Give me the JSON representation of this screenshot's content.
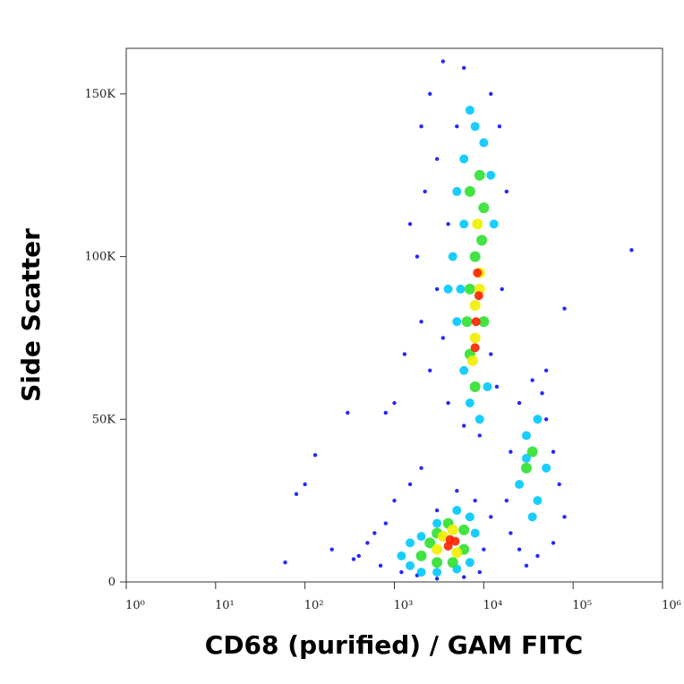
{
  "chart_data": {
    "type": "scatter",
    "x_label": "CD68 (purified) / GAM FITC",
    "y_label": "Side Scatter",
    "x_log": true,
    "xlim": [
      1,
      1000000
    ],
    "xticks": [
      {
        "value": 1,
        "label": "10⁰"
      },
      {
        "value": 10,
        "label": "10¹"
      },
      {
        "value": 100,
        "label": "10²"
      },
      {
        "value": 1000,
        "label": "10³"
      },
      {
        "value": 10000,
        "label": "10⁴"
      },
      {
        "value": 100000,
        "label": "10⁵"
      },
      {
        "value": 1000000,
        "label": "10⁶"
      }
    ],
    "ylim": [
      0,
      164000
    ],
    "yticks": [
      0,
      {
        "value": 50000,
        "label": "50K"
      },
      {
        "value": 100000,
        "label": "100K"
      },
      {
        "value": 150000,
        "label": "150K"
      }
    ],
    "series": [
      {
        "color": "#1010ff",
        "x": [
          2000,
          2500,
          3500,
          6000,
          12000,
          15000,
          2200,
          1800,
          2000,
          2500,
          4000,
          6000,
          9000,
          14000,
          16000,
          18000,
          3000,
          5000,
          4000,
          3000,
          3500,
          12000,
          1500,
          1300,
          1000,
          800,
          400,
          500,
          700,
          800,
          1000,
          1500,
          2000,
          1200,
          1800,
          3000,
          6000,
          9000,
          10000,
          12000,
          8000,
          5000,
          3000,
          600,
          350,
          20000,
          25000,
          40000,
          60000,
          80000,
          70000,
          60000,
          50000,
          45000,
          35000,
          25000,
          20000,
          18000,
          30000,
          50000,
          60,
          80,
          100,
          130,
          200,
          450000,
          80000,
          300
        ],
        "values": [
          140000,
          150000,
          160000,
          158000,
          150000,
          140000,
          120000,
          100000,
          80000,
          65000,
          55000,
          48000,
          45000,
          60000,
          90000,
          120000,
          130000,
          140000,
          110000,
          90000,
          75000,
          70000,
          110000,
          70000,
          55000,
          52000,
          8000,
          12000,
          5000,
          18000,
          25000,
          30000,
          35000,
          3000,
          2000,
          1000,
          1500,
          3000,
          10000,
          20000,
          25000,
          28000,
          22000,
          15000,
          7000,
          15000,
          10000,
          8000,
          12000,
          20000,
          30000,
          40000,
          50000,
          58000,
          62000,
          55000,
          40000,
          25000,
          5000,
          65000,
          6000,
          27000,
          30000,
          39000,
          10000,
          102000,
          84000,
          52000
        ]
      },
      {
        "color": "#00c8ff",
        "x": [
          5000,
          6000,
          8000,
          10000,
          4500,
          5000,
          6000,
          7000,
          9000,
          11000,
          13000,
          12000,
          6000,
          5500,
          4000,
          7000,
          1200,
          1500,
          2000,
          3000,
          5000,
          7000,
          8000,
          7000,
          5000,
          3000,
          2000,
          1500,
          25000,
          30000,
          40000,
          50000,
          40000,
          35000,
          30000
        ],
        "values": [
          120000,
          130000,
          140000,
          135000,
          100000,
          80000,
          65000,
          55000,
          50000,
          60000,
          110000,
          125000,
          110000,
          90000,
          90000,
          145000,
          8000,
          5000,
          3000,
          3000,
          4000,
          6000,
          15000,
          20000,
          22000,
          18000,
          14000,
          12000,
          30000,
          45000,
          50000,
          35000,
          25000,
          20000,
          38000
        ]
      },
      {
        "color": "#30e030",
        "x": [
          7000,
          9000,
          10000,
          8000,
          7000,
          7000,
          8000,
          10000,
          9500,
          6500,
          2000,
          2500,
          3000,
          4500,
          6000,
          6000,
          4000,
          3000,
          30000,
          35000
        ],
        "values": [
          120000,
          125000,
          115000,
          100000,
          90000,
          70000,
          60000,
          80000,
          105000,
          80000,
          8000,
          12000,
          6000,
          6000,
          10000,
          16000,
          18000,
          15000,
          35000,
          40000
        ]
      },
      {
        "color": "#f0f000",
        "x": [
          8500,
          9000,
          8000,
          8000,
          9000,
          7500,
          3000,
          4500,
          5000,
          3500
        ],
        "values": [
          110000,
          95000,
          85000,
          75000,
          90000,
          68000,
          10000,
          16000,
          9000,
          14000
        ]
      },
      {
        "color": "#ff2000",
        "x": [
          8500,
          8200,
          8800,
          8000,
          4200,
          4800,
          4000
        ],
        "values": [
          95000,
          80000,
          88000,
          72000,
          13000,
          12500,
          11000
        ]
      }
    ]
  }
}
